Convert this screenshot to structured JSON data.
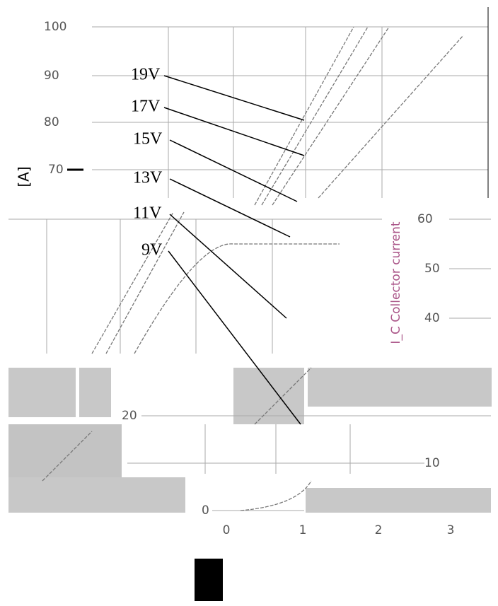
{
  "y_axis_label": "[A]",
  "y_ticks_left": [
    "100",
    "90",
    "80",
    "70"
  ],
  "y_ticks_right": [
    "60",
    "50",
    "40"
  ],
  "y_ticks_lower": [
    "20",
    "10",
    "0"
  ],
  "x_ticks": [
    "0",
    "1",
    "2",
    "3"
  ],
  "curve_labels": [
    "19V",
    "17V",
    "15V",
    "13V",
    "11V",
    "9V"
  ],
  "side_label": "I_C Collector current"
}
